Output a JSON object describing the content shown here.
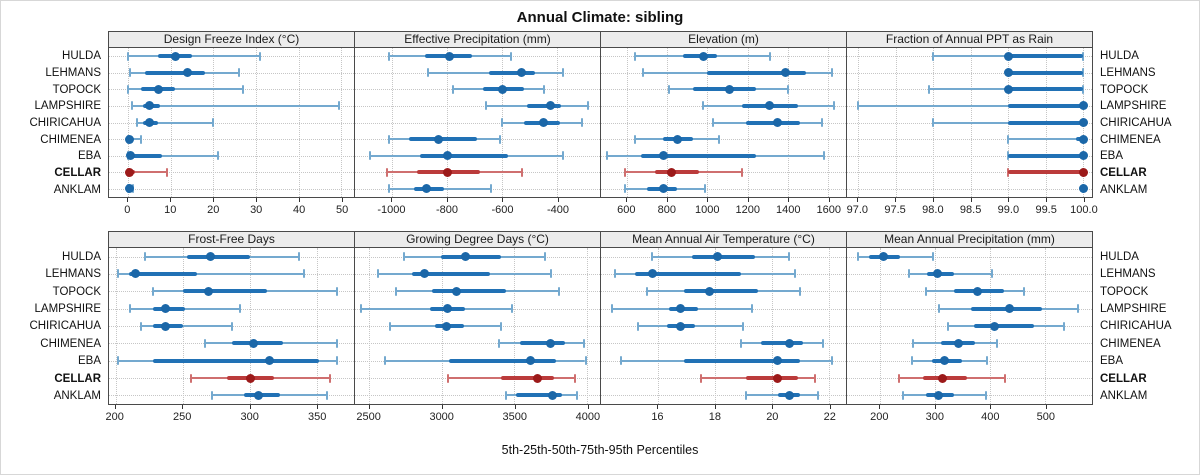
{
  "chart_data": {
    "type": "scatter",
    "subtype": "percentile-dot-whisker-trellis",
    "title": "Annual Climate: sibling",
    "caption": "5th-25th-50th-75th-95th Percentiles",
    "legend_position": "none",
    "grid": "dotted",
    "sites": [
      "HULDA",
      "LEHMANS",
      "TOPOCK",
      "LAMPSHIRE",
      "CHIRICAHUA",
      "CHIMENEA",
      "EBA",
      "CELLAR",
      "ANKLAM"
    ],
    "highlight_site": "CELLAR",
    "percentile_order": [
      "p5",
      "p25",
      "p50",
      "p75",
      "p95"
    ],
    "colors": {
      "blue_range": "#74a9cf",
      "blue_iqr": "#2171b5",
      "blue_dot": "#1b67a8",
      "red_range": "#cf6f6f",
      "red_iqr": "#bb3b3b",
      "red_dot": "#9c1a1a",
      "grid": "#c6c6c6",
      "strip_bg": "#ececec",
      "border": "#4a4a4a"
    },
    "panels": [
      {
        "label": "Design Freeze Index (°C)",
        "xlim": [
          -4.5,
          53
        ],
        "ticks": [
          0,
          10,
          20,
          30,
          40,
          50
        ],
        "tick_labels": [
          "0",
          "10",
          "20",
          "30",
          "40",
          "50"
        ],
        "values": [
          [
            0,
            7,
            11,
            15,
            31
          ],
          [
            0.5,
            4,
            14,
            18,
            26
          ],
          [
            0,
            3,
            7,
            11,
            27
          ],
          [
            1,
            3.5,
            5,
            7.5,
            49.5
          ],
          [
            2,
            3.5,
            5,
            7,
            20
          ],
          [
            0,
            0,
            0.3,
            0.8,
            3
          ],
          [
            0,
            0.2,
            0.5,
            8,
            21
          ],
          [
            0,
            0,
            0.3,
            1.5,
            9
          ],
          [
            0,
            0,
            0.3,
            0.8,
            1.2
          ]
        ]
      },
      {
        "label": "Effective Precipitation (mm)",
        "xlim": [
          -1135,
          -245
        ],
        "ticks": [
          -1000,
          -800,
          -600,
          -400
        ],
        "tick_labels": [
          "-1000",
          "-800",
          "-600",
          "-400"
        ],
        "values": [
          [
            -1010,
            -880,
            -790,
            -710,
            -570
          ],
          [
            -870,
            -650,
            -530,
            -480,
            -380
          ],
          [
            -780,
            -670,
            -600,
            -520,
            -450
          ],
          [
            -660,
            -510,
            -425,
            -385,
            -290
          ],
          [
            -600,
            -520,
            -450,
            -390,
            -310
          ],
          [
            -1010,
            -940,
            -830,
            -690,
            -610
          ],
          [
            -1080,
            -900,
            -800,
            -580,
            -380
          ],
          [
            -1020,
            -910,
            -800,
            -680,
            -530
          ],
          [
            -1010,
            -920,
            -875,
            -810,
            -640
          ]
        ]
      },
      {
        "label": "Elevation (m)",
        "xlim": [
          470,
          1690
        ],
        "ticks": [
          600,
          800,
          1000,
          1200,
          1400,
          1600
        ],
        "tick_labels": [
          "600",
          "800",
          "1000",
          "1200",
          "1400",
          "1600"
        ],
        "values": [
          [
            640,
            880,
            980,
            1050,
            1310
          ],
          [
            680,
            1000,
            1390,
            1490,
            1620
          ],
          [
            810,
            930,
            1110,
            1240,
            1400
          ],
          [
            980,
            1170,
            1310,
            1450,
            1630
          ],
          [
            1030,
            1190,
            1350,
            1460,
            1570
          ],
          [
            640,
            780,
            850,
            930,
            1060
          ],
          [
            500,
            670,
            780,
            1240,
            1580
          ],
          [
            590,
            740,
            820,
            960,
            1170
          ],
          [
            590,
            700,
            780,
            850,
            990
          ]
        ]
      },
      {
        "label": "Fraction of Annual PPT as Rain",
        "xlim": [
          96.85,
          100.12
        ],
        "ticks": [
          97.0,
          97.5,
          98.0,
          98.5,
          99.0,
          99.5,
          100.0
        ],
        "tick_labels": [
          "97.0",
          "97.5",
          "98.0",
          "98.5",
          "99.0",
          "99.5",
          "100.0"
        ],
        "values": [
          [
            98.0,
            99.0,
            99.0,
            100,
            100
          ],
          [
            99.0,
            99.0,
            99.0,
            100,
            100
          ],
          [
            97.95,
            99.0,
            99.0,
            100,
            100
          ],
          [
            97.0,
            99.0,
            100,
            100,
            100
          ],
          [
            98.0,
            99.0,
            100,
            100,
            100
          ],
          [
            99.0,
            99.9,
            100,
            100,
            100
          ],
          [
            99.0,
            99.0,
            100,
            100,
            100
          ],
          [
            99.0,
            99.0,
            100,
            100,
            100
          ],
          [
            100,
            100,
            100,
            100,
            100
          ]
        ]
      },
      {
        "label": "Frost-Free Days",
        "xlim": [
          195,
          378
        ],
        "ticks": [
          200,
          250,
          300,
          350
        ],
        "tick_labels": [
          "200",
          "250",
          "300",
          "350"
        ],
        "values": [
          [
            222,
            253,
            271,
            300,
            337
          ],
          [
            202,
            210,
            215,
            261,
            341
          ],
          [
            228,
            250,
            269,
            313,
            365
          ],
          [
            211,
            228,
            237,
            252,
            293
          ],
          [
            219,
            228,
            237,
            250,
            287
          ],
          [
            267,
            287,
            303,
            325,
            365
          ],
          [
            202,
            228,
            315,
            352,
            365
          ],
          [
            256,
            283,
            301,
            318,
            360
          ],
          [
            272,
            296,
            307,
            323,
            358
          ]
        ]
      },
      {
        "label": "Growing Degree Days (°C)",
        "xlim": [
          2400,
          4090
        ],
        "ticks": [
          2500,
          3000,
          3500,
          4000
        ],
        "tick_labels": [
          "2500",
          "3000",
          "3500",
          "4000"
        ],
        "values": [
          [
            2740,
            2990,
            3160,
            3410,
            3710
          ],
          [
            2560,
            2790,
            2880,
            3330,
            3750
          ],
          [
            2680,
            2930,
            3100,
            3440,
            3810
          ],
          [
            2440,
            2920,
            3040,
            3160,
            3480
          ],
          [
            2640,
            2950,
            3030,
            3150,
            3410
          ],
          [
            3390,
            3540,
            3750,
            3850,
            3980
          ],
          [
            2610,
            3050,
            3610,
            3790,
            3990
          ],
          [
            3040,
            3410,
            3660,
            3770,
            3920
          ],
          [
            3440,
            3510,
            3760,
            3830,
            3930
          ]
        ]
      },
      {
        "label": "Mean Annual Air Temperature (°C)",
        "xlim": [
          14.0,
          22.6
        ],
        "ticks": [
          16,
          18,
          20,
          22
        ],
        "tick_labels": [
          "16",
          "18",
          "20",
          "22"
        ],
        "values": [
          [
            15.8,
            17.2,
            18.1,
            19.4,
            20.6
          ],
          [
            14.5,
            15.2,
            15.8,
            18.9,
            20.8
          ],
          [
            15.6,
            16.9,
            17.8,
            19.5,
            21.0
          ],
          [
            14.4,
            16.4,
            16.8,
            17.4,
            19.3
          ],
          [
            15.3,
            16.3,
            16.8,
            17.3,
            19.0
          ],
          [
            18.9,
            19.6,
            20.6,
            21.1,
            21.8
          ],
          [
            14.7,
            16.9,
            20.2,
            21.0,
            22.1
          ],
          [
            17.5,
            19.1,
            20.2,
            20.9,
            21.5
          ],
          [
            19.1,
            20.2,
            20.6,
            21.0,
            21.6
          ]
        ]
      },
      {
        "label": "Mean Annual Precipitation (mm)",
        "xlim": [
          140,
          585
        ],
        "ticks": [
          200,
          300,
          400,
          500
        ],
        "tick_labels": [
          "200",
          "300",
          "400",
          "500"
        ],
        "values": [
          [
            160,
            180,
            207,
            237,
            297
          ],
          [
            253,
            285,
            305,
            335,
            403
          ],
          [
            283,
            335,
            377,
            425,
            462
          ],
          [
            308,
            365,
            435,
            495,
            560
          ],
          [
            323,
            370,
            407,
            480,
            535
          ],
          [
            260,
            310,
            343,
            372,
            413
          ],
          [
            258,
            295,
            317,
            348,
            395
          ],
          [
            235,
            278,
            313,
            358,
            427
          ],
          [
            242,
            283,
            307,
            335,
            392
          ]
        ]
      }
    ],
    "panel_rows": [
      [
        0,
        1,
        2,
        3
      ],
      [
        4,
        5,
        6,
        7
      ]
    ]
  }
}
